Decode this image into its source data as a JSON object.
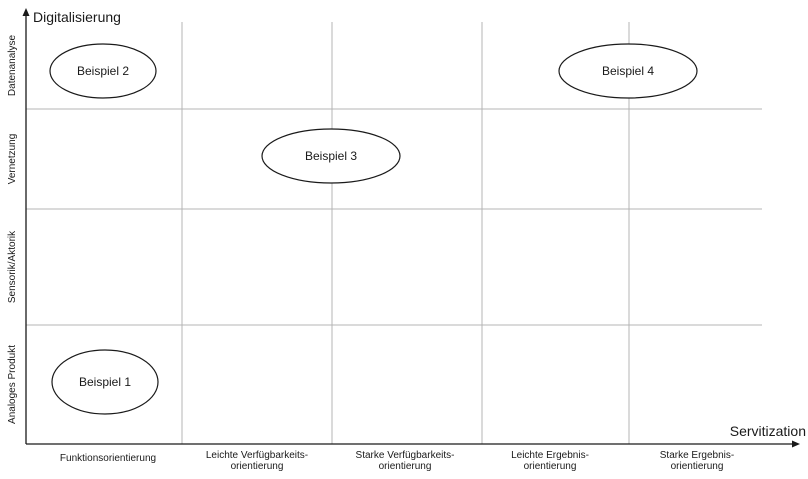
{
  "y_axis": {
    "title": "Digitalisierung"
  },
  "x_axis": {
    "title": "Servitization"
  },
  "rows": [
    {
      "id": "datenanalyse",
      "label": "Datenanalyse"
    },
    {
      "id": "vernetzung",
      "label": "Vernetzung"
    },
    {
      "id": "sensorik",
      "label": "Sensorik/Aktorik"
    },
    {
      "id": "analog",
      "label": "Analoges Produkt"
    }
  ],
  "columns": [
    {
      "id": "funktion",
      "lines": [
        "Funktionsorientierung"
      ]
    },
    {
      "id": "leicht-verf",
      "lines": [
        "Leichte Verfügbarkeits-",
        "orientierung"
      ]
    },
    {
      "id": "stark-verf",
      "lines": [
        "Starke Verfügbarkeits-",
        "orientierung"
      ]
    },
    {
      "id": "leicht-erg",
      "lines": [
        "Leichte Ergebnis-",
        "orientierung"
      ]
    },
    {
      "id": "stark-erg",
      "lines": [
        "Starke Ergebnis-",
        "orientierung"
      ]
    }
  ],
  "examples": [
    {
      "id": "beispiel-2",
      "label": "Beispiel 2",
      "column": 0,
      "row": 0
    },
    {
      "id": "beispiel-4",
      "label": "Beispiel 4",
      "column": 3.5,
      "row": 0
    },
    {
      "id": "beispiel-3",
      "label": "Beispiel 3",
      "column": 2,
      "row": 1
    },
    {
      "id": "beispiel-1",
      "label": "Beispiel 1",
      "column": 0,
      "row": 3
    }
  ]
}
